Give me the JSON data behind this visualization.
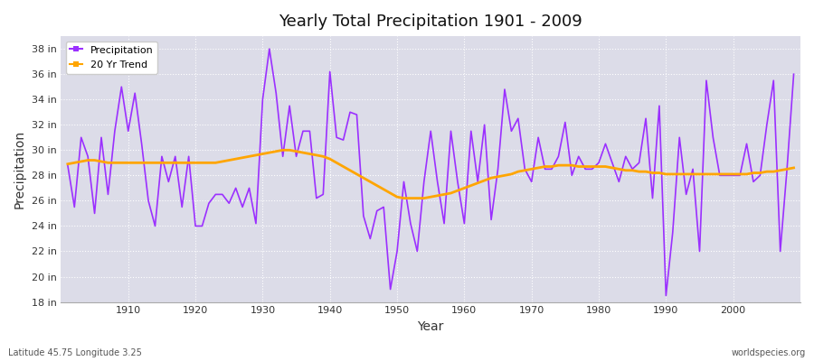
{
  "title": "Yearly Total Precipitation 1901 - 2009",
  "xlabel": "Year",
  "ylabel": "Precipitation",
  "footnote_left": "Latitude 45.75 Longitude 3.25",
  "footnote_right": "worldspecies.org",
  "line_color": "#9B30FF",
  "trend_color": "#FFA500",
  "bg_color": "#DCDCE8",
  "ylim": [
    18,
    39
  ],
  "yticks": [
    18,
    20,
    22,
    24,
    26,
    28,
    30,
    32,
    34,
    36,
    38
  ],
  "xticks": [
    1910,
    1920,
    1930,
    1940,
    1950,
    1960,
    1970,
    1980,
    1990,
    2000
  ],
  "years": [
    1901,
    1902,
    1903,
    1904,
    1905,
    1906,
    1907,
    1908,
    1909,
    1910,
    1911,
    1912,
    1913,
    1914,
    1915,
    1916,
    1917,
    1918,
    1919,
    1920,
    1921,
    1922,
    1923,
    1924,
    1925,
    1926,
    1927,
    1928,
    1929,
    1930,
    1931,
    1932,
    1933,
    1934,
    1935,
    1936,
    1937,
    1938,
    1939,
    1940,
    1941,
    1942,
    1943,
    1944,
    1945,
    1946,
    1947,
    1948,
    1949,
    1950,
    1951,
    1952,
    1953,
    1954,
    1955,
    1956,
    1957,
    1958,
    1959,
    1960,
    1961,
    1962,
    1963,
    1964,
    1965,
    1966,
    1967,
    1968,
    1969,
    1970,
    1971,
    1972,
    1973,
    1974,
    1975,
    1976,
    1977,
    1978,
    1979,
    1980,
    1981,
    1982,
    1983,
    1984,
    1985,
    1986,
    1987,
    1988,
    1989,
    1990,
    1991,
    1992,
    1993,
    1994,
    1995,
    1996,
    1997,
    1998,
    1999,
    2000,
    2001,
    2002,
    2003,
    2004,
    2005,
    2006,
    2007,
    2008,
    2009
  ],
  "precip": [
    28.8,
    25.5,
    31.0,
    29.5,
    25.0,
    31.0,
    26.5,
    31.5,
    35.0,
    31.5,
    34.5,
    30.5,
    26.0,
    24.0,
    29.5,
    27.5,
    29.5,
    25.5,
    29.5,
    24.0,
    24.0,
    25.8,
    26.5,
    26.5,
    25.8,
    27.0,
    25.5,
    27.0,
    24.2,
    34.0,
    38.0,
    34.5,
    29.5,
    33.5,
    29.5,
    31.5,
    31.5,
    26.2,
    26.5,
    36.2,
    31.0,
    30.8,
    33.0,
    32.8,
    24.8,
    23.0,
    25.2,
    25.5,
    19.0,
    22.0,
    27.5,
    24.2,
    22.0,
    27.5,
    31.5,
    27.5,
    24.2,
    31.5,
    27.5,
    24.2,
    31.5,
    27.5,
    32.0,
    24.5,
    28.5,
    34.8,
    31.5,
    32.5,
    28.5,
    27.5,
    31.0,
    28.5,
    28.5,
    29.5,
    32.2,
    28.0,
    29.5,
    28.5,
    28.5,
    29.0,
    30.5,
    29.0,
    27.5,
    29.5,
    28.5,
    29.0,
    32.5,
    26.2,
    33.5,
    18.5,
    23.5,
    31.0,
    26.5,
    28.5,
    22.0,
    35.5,
    31.0,
    28.0,
    28.0,
    28.0,
    28.0,
    30.5,
    27.5,
    28.0,
    32.0,
    35.5,
    22.0,
    28.5,
    36.0
  ],
  "trend": [
    28.9,
    29.0,
    29.1,
    29.2,
    29.2,
    29.1,
    29.0,
    29.0,
    29.0,
    29.0,
    29.0,
    29.0,
    29.0,
    29.0,
    29.0,
    29.0,
    29.0,
    29.0,
    29.0,
    29.0,
    29.0,
    29.0,
    29.0,
    29.1,
    29.2,
    29.3,
    29.4,
    29.5,
    29.6,
    29.7,
    29.8,
    29.9,
    30.0,
    30.0,
    29.9,
    29.8,
    29.7,
    29.6,
    29.5,
    29.3,
    29.0,
    28.7,
    28.4,
    28.1,
    27.8,
    27.5,
    27.2,
    26.9,
    26.6,
    26.3,
    26.2,
    26.2,
    26.2,
    26.2,
    26.3,
    26.4,
    26.5,
    26.6,
    26.8,
    27.0,
    27.2,
    27.4,
    27.6,
    27.8,
    27.9,
    28.0,
    28.1,
    28.3,
    28.4,
    28.5,
    28.6,
    28.7,
    28.7,
    28.8,
    28.8,
    28.8,
    28.7,
    28.7,
    28.7,
    28.7,
    28.7,
    28.6,
    28.5,
    28.4,
    28.4,
    28.3,
    28.3,
    28.2,
    28.2,
    28.1,
    28.1,
    28.1,
    28.1,
    28.1,
    28.1,
    28.1,
    28.1,
    28.1,
    28.1,
    28.1,
    28.1,
    28.1,
    28.2,
    28.2,
    28.3,
    28.3,
    28.4,
    28.5,
    28.6
  ]
}
